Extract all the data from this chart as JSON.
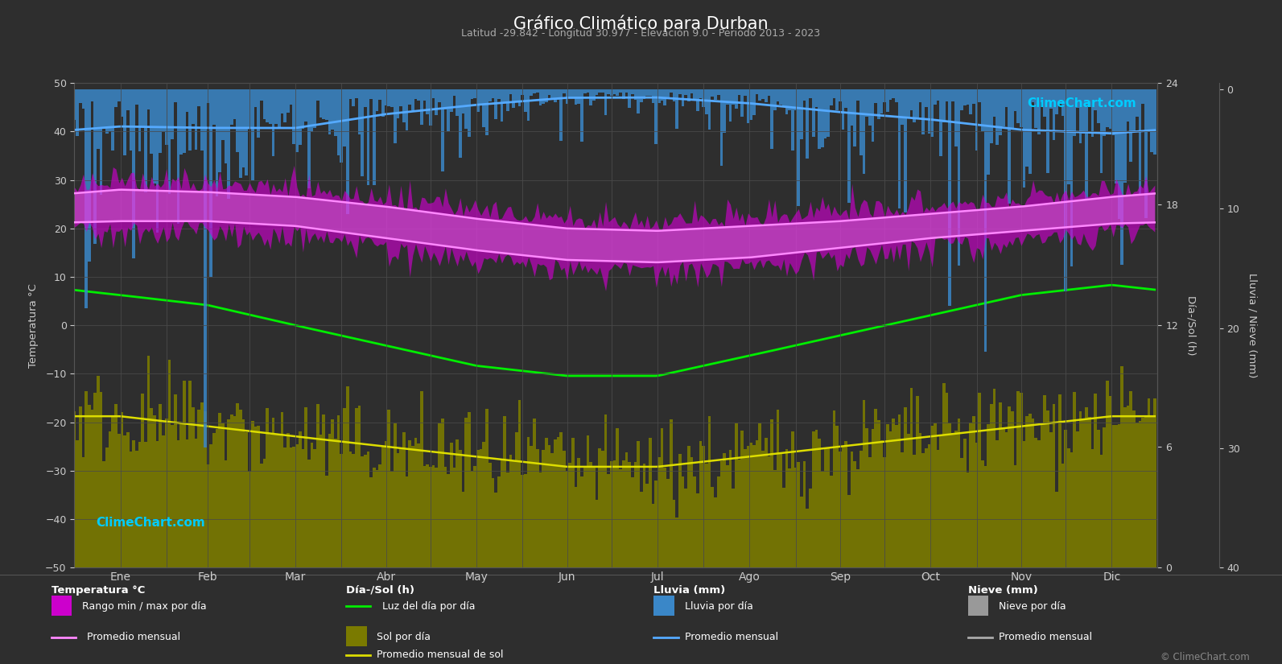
{
  "title": "Gráfico Climático para Durban",
  "subtitle": "Latitud -29.842 - Longitud 30.977 - Elevación 9.0 - Periodo 2013 - 2023",
  "months": [
    "Ene",
    "Feb",
    "Mar",
    "Abr",
    "May",
    "Jun",
    "Jul",
    "Ago",
    "Sep",
    "Oct",
    "Nov",
    "Dic"
  ],
  "temp_ylim": [
    -50,
    50
  ],
  "background_color": "#2e2e2e",
  "plot_bg_color": "#3c3c3c",
  "grid_color": "#505050",
  "temp_avg_max": [
    28.0,
    27.5,
    26.5,
    24.5,
    22.0,
    20.0,
    19.5,
    20.5,
    21.5,
    23.0,
    24.5,
    26.5
  ],
  "temp_avg_min": [
    21.5,
    21.5,
    20.5,
    18.0,
    15.5,
    13.5,
    13.0,
    14.0,
    16.0,
    18.0,
    19.5,
    21.0
  ],
  "temp_abs_max": [
    35,
    34,
    33,
    31,
    28,
    26,
    25,
    27,
    29,
    31,
    33,
    34
  ],
  "temp_abs_min": [
    15,
    15,
    14,
    11,
    7,
    4,
    3,
    5,
    9,
    12,
    14,
    15
  ],
  "daylight": [
    13.5,
    13.0,
    12.0,
    11.0,
    10.0,
    9.5,
    9.5,
    10.5,
    11.5,
    12.5,
    13.5,
    14.0
  ],
  "sunshine_avg": [
    7.5,
    7.0,
    6.5,
    6.0,
    5.5,
    5.0,
    5.0,
    5.5,
    6.0,
    6.5,
    7.0,
    7.5
  ],
  "rain_monthly_avg_mm": [
    97,
    91,
    101,
    63,
    41,
    22,
    22,
    37,
    58,
    79,
    102,
    115
  ],
  "days_in_month": [
    31,
    28,
    31,
    30,
    31,
    30,
    31,
    31,
    30,
    31,
    30,
    31
  ],
  "sun_right_yticks": [
    0,
    6,
    12,
    18,
    24
  ],
  "rain_right_yticks": [
    0,
    10,
    20,
    30,
    40
  ],
  "temp_left_yticks": [
    -50,
    -40,
    -30,
    -20,
    -10,
    0,
    10,
    20,
    30,
    40,
    50
  ],
  "noise_seed": 42,
  "logo_color": "#00ccff",
  "logo_text": "ClimeChart.com",
  "copyright_text": "© ClimeChart.com"
}
